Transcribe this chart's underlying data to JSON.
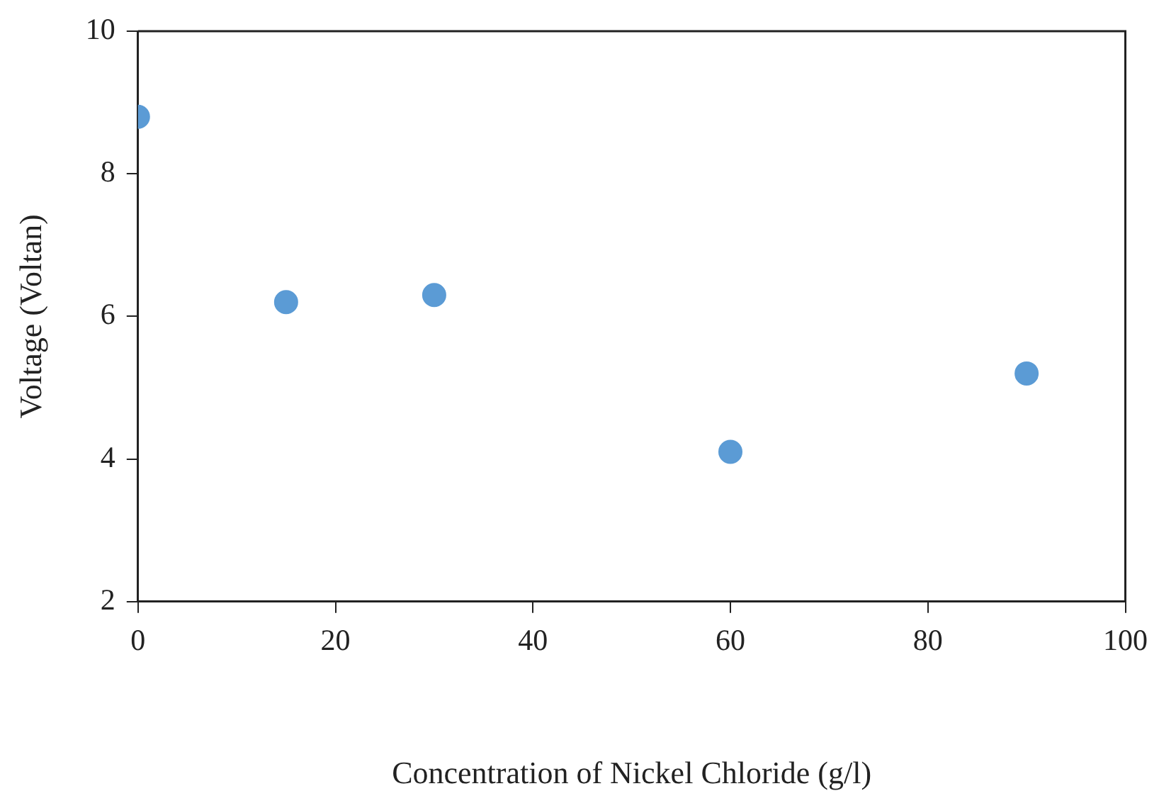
{
  "chart_data": {
    "type": "scatter",
    "xlabel": "Concentration of Nickel Chloride (g/l)",
    "ylabel": "Voltage (Voltan)",
    "x": [
      0,
      15,
      30,
      60,
      90
    ],
    "series": [
      {
        "color": "#5b9bd5",
        "values": [
          8.8,
          6.2,
          6.3,
          4.1,
          5.2
        ]
      }
    ],
    "xlim": [
      0,
      100
    ],
    "xticks": [
      0,
      20,
      40,
      60,
      80,
      100
    ],
    "ylim": [
      2,
      10
    ],
    "yticks": [
      2,
      4,
      6,
      8,
      10
    ],
    "grid": false,
    "legend": false,
    "marker": "circle"
  }
}
